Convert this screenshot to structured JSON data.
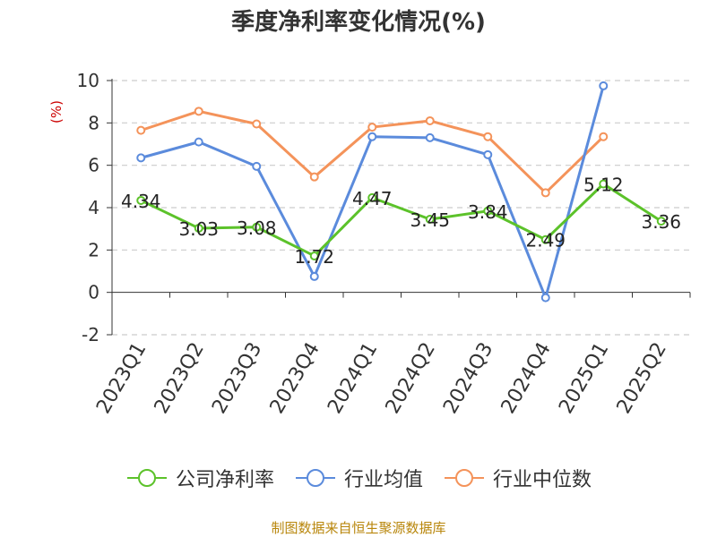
{
  "chart_data": {
    "type": "line",
    "title": "季度净利率变化情况(%)",
    "ylabel": "(%)",
    "xlabel": "",
    "categories": [
      "2023Q1",
      "2023Q2",
      "2023Q3",
      "2023Q4",
      "2024Q1",
      "2024Q2",
      "2024Q3",
      "2024Q4",
      "2025Q1",
      "2025Q2"
    ],
    "ylim": [
      -2,
      10
    ],
    "yticks": [
      -2,
      0,
      2,
      4,
      6,
      8,
      10
    ],
    "grid": true,
    "legend_position": "bottom",
    "series": [
      {
        "name": "公司净利率",
        "color": "#5cc22a",
        "values": [
          4.34,
          3.03,
          3.08,
          1.72,
          4.47,
          3.45,
          3.84,
          2.49,
          5.12,
          3.36
        ],
        "show_labels": true
      },
      {
        "name": "行业均值",
        "color": "#5b8bdc",
        "values": [
          6.35,
          7.1,
          5.95,
          0.75,
          7.35,
          7.3,
          6.5,
          -0.25,
          9.75,
          null
        ],
        "show_labels": false
      },
      {
        "name": "行业中位数",
        "color": "#f4935a",
        "values": [
          7.65,
          8.55,
          7.95,
          5.45,
          7.8,
          8.1,
          7.35,
          4.7,
          7.35,
          null
        ],
        "show_labels": false
      }
    ]
  },
  "source_note": "制图数据来自恒生聚源数据库"
}
